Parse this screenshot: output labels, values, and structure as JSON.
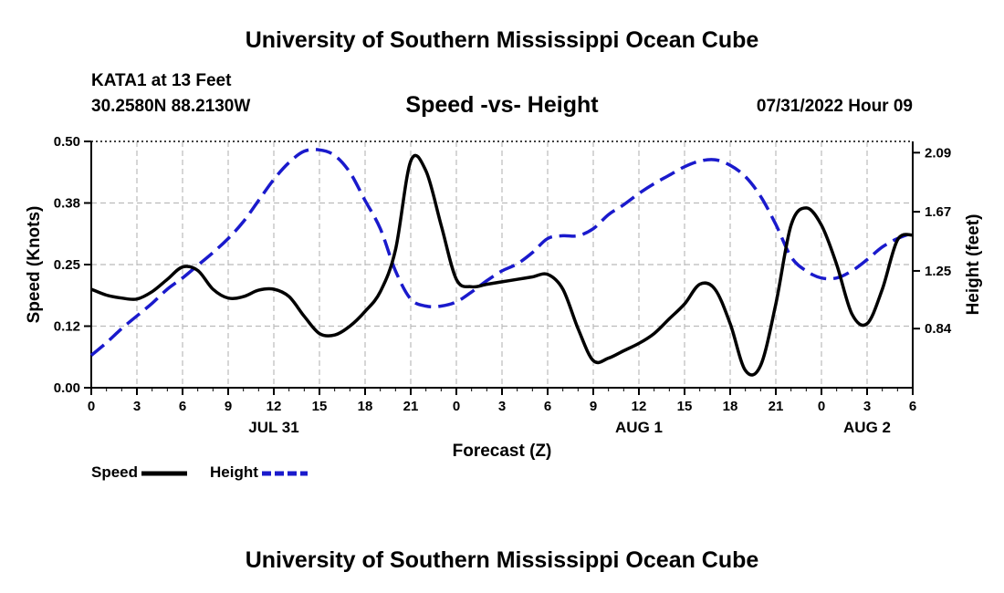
{
  "header": {
    "title": "University of Southern Mississippi Ocean Cube",
    "station": "KATA1 at 13 Feet",
    "coords": "30.2580N  88.2130W",
    "subtitle": "Speed -vs- Height",
    "datetime": "07/31/2022 Hour 09"
  },
  "footer": {
    "title": "University of Southern Mississippi Ocean Cube"
  },
  "legend": [
    {
      "label": "Speed",
      "color": "#000000",
      "style": "solid"
    },
    {
      "label": "Height",
      "color": "#1a1acc",
      "style": "dashed"
    }
  ],
  "chart_data": {
    "type": "line",
    "title": "Speed -vs- Height",
    "xlabel": "Forecast (Z)",
    "ylabel": "Speed (Knots)",
    "y2label": "Height (feet)",
    "xlim": [
      0,
      54
    ],
    "ylim": [
      0,
      0.5
    ],
    "y2lim": [
      0.42,
      2.17
    ],
    "x_ticks": [
      0,
      3,
      6,
      9,
      12,
      15,
      18,
      21,
      24,
      27,
      30,
      33,
      36,
      39,
      42,
      45,
      48,
      51,
      54
    ],
    "x_tick_labels": [
      "0",
      "3",
      "6",
      "9",
      "12",
      "15",
      "18",
      "21",
      "0",
      "3",
      "6",
      "9",
      "12",
      "15",
      "18",
      "21",
      "0",
      "3",
      "6"
    ],
    "y_ticks": [
      0,
      0.125,
      0.25,
      0.375,
      0.5
    ],
    "y_tick_labels": [
      "0.00",
      "0.12",
      "0.25",
      "0.38",
      "0.50"
    ],
    "y2_ticks": [
      0.84,
      1.25,
      1.67,
      2.09
    ],
    "y2_tick_labels": [
      "0.84",
      "1.25",
      "1.67",
      "2.09"
    ],
    "day_labels": [
      {
        "x": 12,
        "label": "JUL 31"
      },
      {
        "x": 36,
        "label": "AUG 1"
      },
      {
        "x": 51,
        "label": "AUG 2"
      }
    ],
    "grid": true,
    "series": [
      {
        "name": "Speed",
        "axis": "left",
        "color": "#000000",
        "dash": "solid",
        "x": [
          0,
          1,
          2,
          3,
          4,
          5,
          6,
          7,
          8,
          9,
          10,
          11,
          12,
          13,
          14,
          15,
          16,
          17,
          18,
          19,
          20,
          21,
          22,
          23,
          24,
          25,
          26,
          27,
          28,
          29,
          30,
          31,
          32,
          33,
          34,
          35,
          36,
          37,
          38,
          39,
          40,
          41,
          42,
          43,
          44,
          45,
          46,
          47,
          48,
          49,
          50,
          51,
          52,
          53,
          54
        ],
        "values": [
          0.2,
          0.188,
          0.182,
          0.18,
          0.195,
          0.22,
          0.245,
          0.238,
          0.2,
          0.182,
          0.185,
          0.198,
          0.2,
          0.185,
          0.145,
          0.11,
          0.107,
          0.125,
          0.155,
          0.195,
          0.28,
          0.46,
          0.44,
          0.33,
          0.22,
          0.205,
          0.21,
          0.215,
          0.22,
          0.225,
          0.23,
          0.2,
          0.12,
          0.055,
          0.06,
          0.075,
          0.09,
          0.11,
          0.14,
          0.17,
          0.21,
          0.2,
          0.13,
          0.035,
          0.045,
          0.17,
          0.33,
          0.365,
          0.33,
          0.25,
          0.15,
          0.13,
          0.2,
          0.3,
          0.31
        ]
      },
      {
        "name": "Height",
        "axis": "right",
        "color": "#1a1acc",
        "dash": "dashed",
        "x": [
          0,
          1,
          2,
          3,
          4,
          5,
          6,
          7,
          8,
          9,
          10,
          11,
          12,
          13,
          14,
          15,
          16,
          17,
          18,
          19,
          20,
          21,
          22,
          23,
          24,
          25,
          26,
          27,
          28,
          29,
          30,
          31,
          32,
          33,
          34,
          35,
          36,
          37,
          38,
          39,
          40,
          41,
          42,
          43,
          44,
          45,
          46,
          47,
          48,
          49,
          50,
          51,
          52,
          53,
          54
        ],
        "values": [
          0.65,
          0.74,
          0.84,
          0.93,
          1.02,
          1.12,
          1.2,
          1.29,
          1.38,
          1.48,
          1.6,
          1.75,
          1.9,
          2.02,
          2.1,
          2.11,
          2.07,
          1.95,
          1.75,
          1.55,
          1.25,
          1.05,
          1.0,
          1.0,
          1.03,
          1.1,
          1.18,
          1.25,
          1.3,
          1.38,
          1.48,
          1.5,
          1.5,
          1.55,
          1.65,
          1.72,
          1.8,
          1.87,
          1.93,
          1.99,
          2.03,
          2.04,
          2.0,
          1.92,
          1.78,
          1.58,
          1.35,
          1.25,
          1.2,
          1.2,
          1.25,
          1.33,
          1.42,
          1.48,
          1.52
        ]
      }
    ]
  }
}
